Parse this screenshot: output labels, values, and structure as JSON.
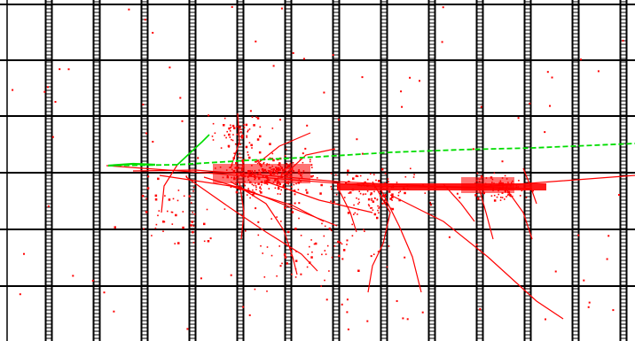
{
  "colors": {
    "background": "#ffffff",
    "grid_line": "#000000",
    "particle_track": "#ff0000",
    "beam_track": "#00dd00"
  }
}
